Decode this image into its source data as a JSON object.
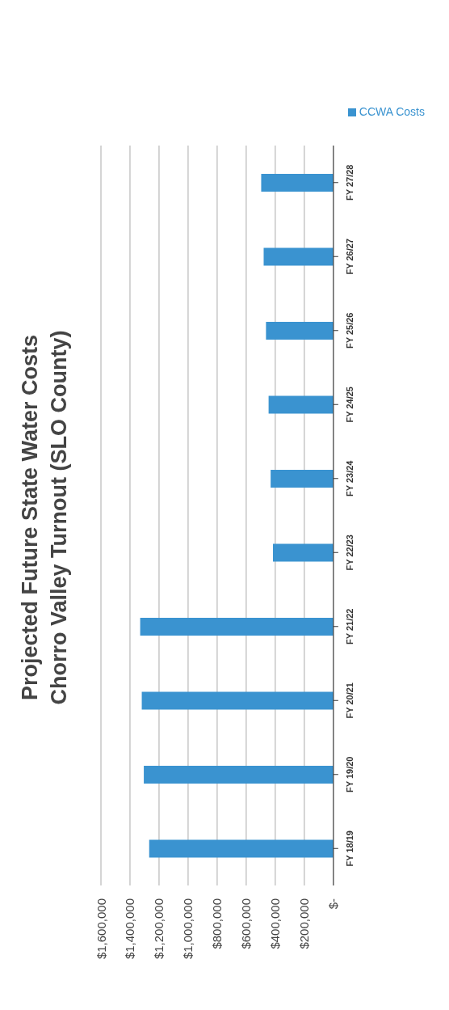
{
  "chart_data": {
    "type": "bar",
    "orientation": "horizontal",
    "title": "Projected Future State Water Costs\nChorro Valley Turnout (SLO County)",
    "categories": [
      "FY 27/28",
      "FY 26/27",
      "FY 25/26",
      "FY 24/25",
      "FY 23/24",
      "FY 22/23",
      "FY 21/22",
      "FY 20/21",
      "FY 19/20",
      "FY 18/19"
    ],
    "series": [
      {
        "name": "CCWA Costs",
        "color": "#3a93d0",
        "values": [
          497000,
          480000,
          464000,
          446000,
          432000,
          416000,
          1330000,
          1319000,
          1305000,
          1268000
        ]
      }
    ],
    "xlim": [
      1600000,
      0
    ],
    "xticks": [
      {
        "value": 1600000,
        "label": "$1,600,000"
      },
      {
        "value": 1400000,
        "label": "$1,400,000"
      },
      {
        "value": 1200000,
        "label": "$1,200,000"
      },
      {
        "value": 1000000,
        "label": "$1,000,000"
      },
      {
        "value": 800000,
        "label": "$800,000"
      },
      {
        "value": 600000,
        "label": "$600,000"
      },
      {
        "value": 400000,
        "label": "$400,000"
      },
      {
        "value": 200000,
        "label": "$200,000"
      },
      {
        "value": 0,
        "label": "$-"
      }
    ],
    "grid": "x",
    "legend": "top right"
  }
}
